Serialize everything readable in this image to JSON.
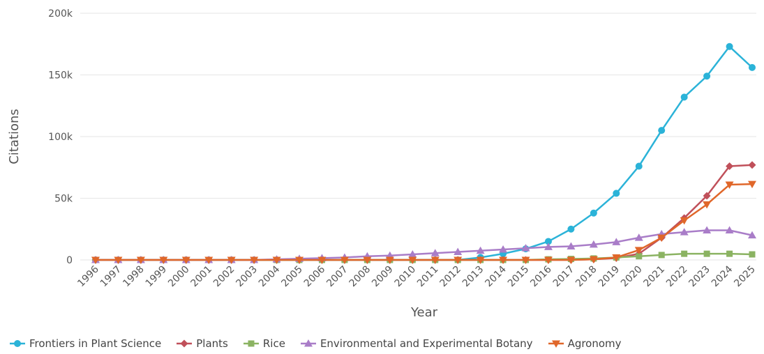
{
  "chart_data": {
    "type": "line",
    "xlabel": "Year",
    "ylabel": "Citations",
    "ylim": [
      0,
      200000
    ],
    "yticks": [
      {
        "value": 0,
        "label": "0"
      },
      {
        "value": 50000,
        "label": "50k"
      },
      {
        "value": 100000,
        "label": "100k"
      },
      {
        "value": 150000,
        "label": "150k"
      },
      {
        "value": 200000,
        "label": "200k"
      }
    ],
    "grid": "horizontal",
    "legend_position": "bottom",
    "x": [
      "1996",
      "1997",
      "1998",
      "1999",
      "2000",
      "2001",
      "2002",
      "2003",
      "2004",
      "2005",
      "2006",
      "2007",
      "2008",
      "2009",
      "2010",
      "2011",
      "2012",
      "2013",
      "2014",
      "2015",
      "2016",
      "2017",
      "2018",
      "2019",
      "2020",
      "2021",
      "2022",
      "2023",
      "2024",
      "2025"
    ],
    "series": [
      {
        "name": "Frontiers in Plant Science",
        "color": "#2bb3d8",
        "marker": "circle",
        "values": [
          0,
          0,
          0,
          0,
          0,
          0,
          0,
          0,
          0,
          0,
          0,
          0,
          0,
          0,
          0,
          0,
          0,
          2000,
          5000,
          9000,
          15000,
          25000,
          38000,
          54000,
          76000,
          105000,
          132000,
          149000,
          173000,
          156000
        ]
      },
      {
        "name": "Plants",
        "color": "#c0505a",
        "marker": "diamond",
        "values": [
          0,
          0,
          0,
          0,
          0,
          0,
          0,
          0,
          0,
          0,
          0,
          0,
          0,
          0,
          0,
          0,
          0,
          0,
          0,
          0,
          0,
          0,
          500,
          1500,
          5000,
          18000,
          34000,
          52000,
          76000,
          77000
        ]
      },
      {
        "name": "Rice",
        "color": "#8bb362",
        "marker": "square",
        "values": [
          0,
          0,
          0,
          0,
          0,
          0,
          0,
          0,
          0,
          0,
          0,
          0,
          0,
          0,
          0,
          0,
          0,
          0,
          0,
          0,
          500,
          800,
          1200,
          2000,
          3000,
          4000,
          5000,
          5000,
          5000,
          4500
        ]
      },
      {
        "name": "Environmental and Experimental Botany",
        "color": "#a97dc8",
        "marker": "triangle",
        "values": [
          0,
          0,
          0,
          0,
          0,
          0,
          0,
          0,
          500,
          1000,
          1500,
          2000,
          3000,
          3500,
          4500,
          5500,
          6500,
          7500,
          8500,
          9500,
          10500,
          11000,
          12500,
          14500,
          18000,
          21000,
          22500,
          24000,
          24000,
          20000
        ]
      },
      {
        "name": "Agronomy",
        "color": "#e0672a",
        "marker": "triangle-down",
        "values": [
          0,
          0,
          0,
          0,
          0,
          0,
          0,
          0,
          0,
          0,
          0,
          0,
          0,
          0,
          0,
          0,
          0,
          0,
          0,
          0,
          0,
          0,
          500,
          2000,
          8000,
          18000,
          32000,
          45000,
          61000,
          61500
        ]
      }
    ]
  }
}
